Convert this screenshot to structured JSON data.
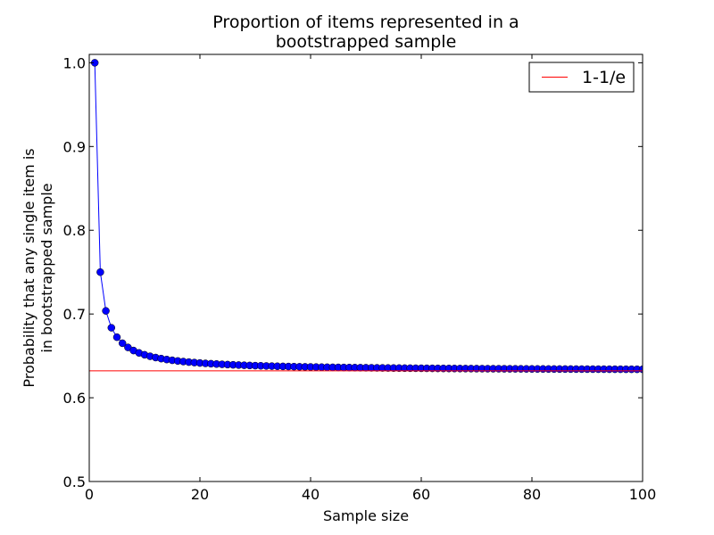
{
  "chart_data": {
    "type": "line",
    "title_lines": [
      "Proportion of items represented in a",
      "bootstrapped sample"
    ],
    "xlabel": "Sample size",
    "ylabel_lines": [
      "Probability that any single item is",
      "in bootstrapped sample"
    ],
    "xlim": [
      0,
      100
    ],
    "ylim": [
      0.5,
      1.01
    ],
    "xticks": [
      0,
      20,
      40,
      60,
      80,
      100
    ],
    "xtick_labels": [
      "0",
      "20",
      "40",
      "60",
      "80",
      "100"
    ],
    "yticks": [
      0.5,
      0.6,
      0.7,
      0.8,
      0.9,
      1.0
    ],
    "ytick_labels": [
      "0.5",
      "0.6",
      "0.7",
      "0.8",
      "0.9",
      "1.0"
    ],
    "grid": false,
    "legend_position": "top-right",
    "series": [
      {
        "type": "line-marker",
        "color": "#0000ff",
        "formula": "1-(1-1/n)^n",
        "x_start": 1,
        "x_end": 100
      },
      {
        "name": "1-1/e",
        "type": "hline",
        "color": "#ff0000",
        "y": 0.6321
      }
    ]
  }
}
